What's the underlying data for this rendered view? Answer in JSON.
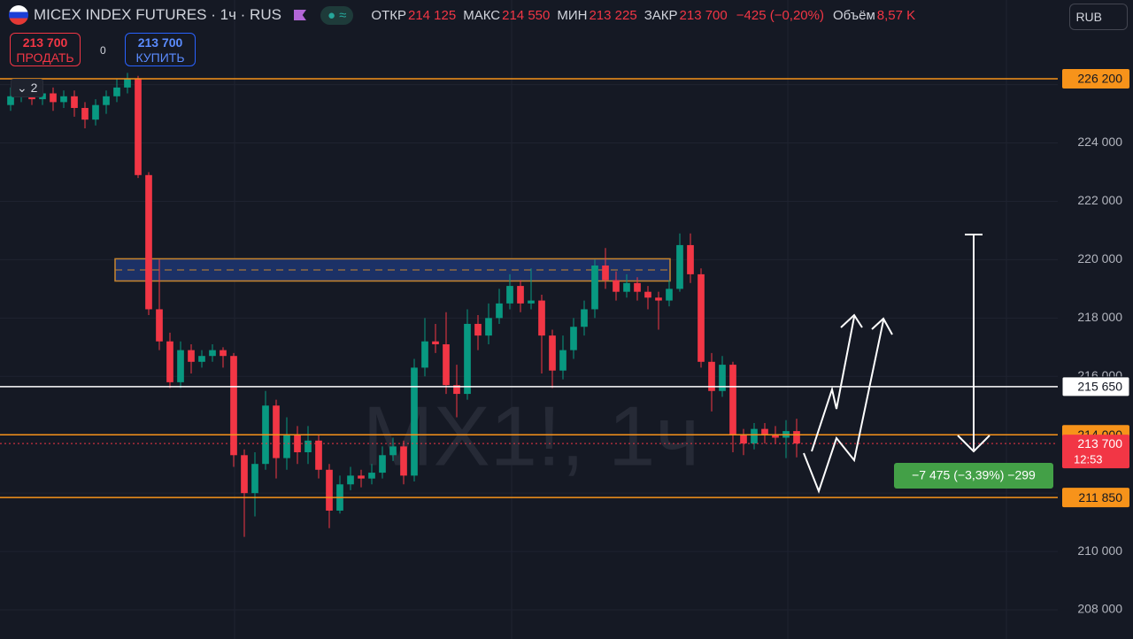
{
  "header": {
    "symbol": "MICEX INDEX FUTURES · 1ч · RUS",
    "ohlc": [
      {
        "key": "ОТКР",
        "value": "214 125"
      },
      {
        "key": "МАКС",
        "value": "214 550"
      },
      {
        "key": "МИН",
        "value": "213 225"
      },
      {
        "key": "ЗАКР",
        "value": "213 700"
      }
    ],
    "change": "−425 (−0,20%)",
    "volume_key": "Объём",
    "volume": "8,57 K",
    "currency": "RUB"
  },
  "trade": {
    "sell_price": "213 700",
    "sell_label": "ПРОДАТЬ",
    "spread": "0",
    "buy_price": "213 700",
    "buy_label": "КУПИТЬ",
    "indicators": "2"
  },
  "chart_data": {
    "type": "candlestick",
    "watermark": "MX1!, 1ч",
    "open": [
      225300,
      225600,
      225800,
      225500,
      225700,
      225400,
      225600,
      225200,
      224800,
      225300,
      225600,
      225900,
      226200,
      222900,
      218300,
      217200,
      215800,
      216900,
      216500,
      216700,
      216900,
      216700,
      213300,
      212000,
      213000,
      215000,
      213200,
      214000,
      213400,
      213800,
      212800,
      211400,
      212300,
      212600,
      212500,
      212700,
      213300,
      213600,
      212600,
      216300,
      217200,
      217100,
      215700,
      215400,
      217800,
      217400,
      218000,
      218500,
      219100,
      218500,
      218600,
      217400,
      216200,
      216900,
      217700,
      218300,
      219800,
      219300,
      218900,
      219200,
      218900,
      218700,
      218600,
      219000,
      220500,
      219500,
      216500,
      215500,
      216400,
      214000,
      213700,
      214200,
      214000,
      213900,
      214125
    ],
    "high": [
      225900,
      226000,
      226000,
      225900,
      225900,
      225800,
      225800,
      225400,
      225500,
      225800,
      226200,
      226400,
      226300,
      223000,
      220000,
      217500,
      217200,
      217100,
      216900,
      217100,
      217000,
      216800,
      213500,
      213400,
      215500,
      215200,
      214600,
      214300,
      214300,
      214000,
      213000,
      212600,
      212900,
      212800,
      213000,
      213600,
      213900,
      213800,
      216600,
      218000,
      217800,
      218200,
      216400,
      218300,
      218100,
      218500,
      219000,
      219500,
      219300,
      219700,
      218800,
      217600,
      217400,
      218000,
      218600,
      220000,
      220400,
      219600,
      219500,
      219400,
      219100,
      218900,
      219300,
      220900,
      220900,
      219700,
      216800,
      216700,
      216500,
      214200,
      214400,
      214400,
      214300,
      214500,
      214550
    ],
    "low": [
      225100,
      225400,
      225300,
      225300,
      225100,
      225200,
      224900,
      224500,
      224600,
      225000,
      225400,
      225700,
      222800,
      218100,
      216900,
      215600,
      215600,
      216100,
      216300,
      216500,
      216300,
      212900,
      210500,
      211200,
      212800,
      212500,
      212800,
      213000,
      213000,
      212500,
      210800,
      211300,
      212100,
      212200,
      212300,
      212500,
      213100,
      212300,
      212400,
      216000,
      216800,
      215400,
      214600,
      215200,
      216900,
      217100,
      217800,
      218300,
      218200,
      218300,
      216100,
      215600,
      215900,
      216600,
      217400,
      218000,
      219000,
      218600,
      218700,
      218600,
      218300,
      217600,
      218400,
      218900,
      219200,
      216300,
      214800,
      215300,
      213400,
      213300,
      213500,
      213700,
      213700,
      213200,
      213225
    ],
    "close": [
      225600,
      225800,
      225500,
      225700,
      225400,
      225600,
      225200,
      224800,
      225300,
      225600,
      225900,
      226200,
      222900,
      218300,
      217200,
      215800,
      216900,
      216500,
      216700,
      216900,
      216700,
      213300,
      212000,
      213000,
      215000,
      213200,
      214000,
      213400,
      213800,
      212800,
      211400,
      212300,
      212600,
      212500,
      212700,
      213300,
      213600,
      212600,
      216300,
      217200,
      217100,
      215700,
      215400,
      217800,
      217400,
      218000,
      218500,
      219100,
      218500,
      218600,
      217400,
      216200,
      216900,
      217700,
      218300,
      219800,
      219300,
      218900,
      219200,
      218900,
      218700,
      218600,
      219000,
      220500,
      219500,
      216500,
      215500,
      216400,
      214000,
      213700,
      214200,
      214000,
      213900,
      214125,
      213700
    ],
    "up_color": "#089981",
    "down_color": "#f23645",
    "ylim": [
      207000,
      228900
    ],
    "yticks": [
      {
        "value": 208000,
        "label": "208 000"
      },
      {
        "value": 210000,
        "label": "210 000"
      },
      {
        "value": 212000,
        "label": "212 000"
      },
      {
        "value": 214000,
        "label": "214 000"
      },
      {
        "value": 216000,
        "label": "216 000"
      },
      {
        "value": 218000,
        "label": "218 000"
      },
      {
        "value": 220000,
        "label": "220 000"
      },
      {
        "value": 222000,
        "label": "222 000"
      },
      {
        "value": 224000,
        "label": "224 000"
      },
      {
        "value": 226000,
        "label": "226 000"
      }
    ],
    "zone": {
      "low": 219270,
      "high": 220030
    },
    "levels": [
      {
        "value": 226200,
        "label": "226 200",
        "color": "#f7931a"
      },
      {
        "value": 215650,
        "label": "215 650",
        "color": "#ffffff"
      },
      {
        "value": 214000,
        "label": "214 000",
        "color": "#f7931a"
      },
      {
        "value": 211850,
        "label": "211 850",
        "color": "#f7931a"
      }
    ],
    "last_price": {
      "value": 213700,
      "label": "213 700",
      "timer": "12:53"
    },
    "measure": "−7 475 (−3,39%) −299"
  }
}
